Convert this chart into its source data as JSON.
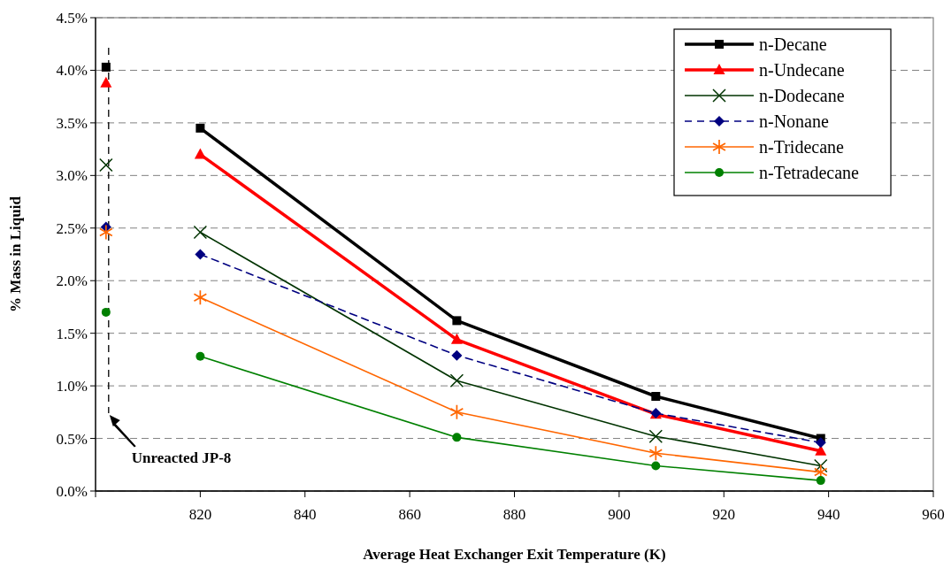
{
  "chart_data": {
    "type": "line",
    "xlabel": "Average Heat Exchanger Exit Temperature (K)",
    "ylabel": "% Mass in Liquid",
    "xlim": [
      800,
      960
    ],
    "xticks": [
      {
        "value": 800,
        "label": null
      },
      820,
      840,
      860,
      880,
      900,
      920,
      940,
      960
    ],
    "ylim": [
      0,
      4.5
    ],
    "yticks": [
      {
        "value": 0,
        "label": "0.0%"
      },
      {
        "value": 0.5,
        "label": "0.5%"
      },
      {
        "value": 1,
        "label": "1.0%"
      },
      {
        "value": 1.5,
        "label": "1.5%"
      },
      {
        "value": 2,
        "label": "2.0%"
      },
      {
        "value": 2.5,
        "label": "2.5%"
      },
      {
        "value": 3,
        "label": "3.0%"
      },
      {
        "value": 3.5,
        "label": "3.5%"
      },
      {
        "value": 4,
        "label": "4.0%"
      },
      {
        "value": 4.5,
        "label": "4.5%"
      }
    ],
    "x": [
      802,
      811,
      820,
      869,
      907,
      938.5
    ],
    "grid": "y",
    "legend": "top right",
    "series": [
      {
        "name": "n-Decane",
        "color": "#000000",
        "marker": "square",
        "values": [
          4.03,
          null,
          3.45,
          1.62,
          0.9,
          0.5
        ]
      },
      {
        "name": "n-Undecane",
        "color": "#ff0000",
        "marker": "triangle",
        "values": [
          3.88,
          null,
          3.2,
          1.44,
          0.73,
          0.38
        ]
      },
      {
        "name": "n-Dodecane",
        "color": "#003300",
        "marker": "cross",
        "values": [
          3.1,
          null,
          2.46,
          1.05,
          0.52,
          0.24
        ]
      },
      {
        "name": "n-Nonane",
        "color": "#000080",
        "marker": "diamond",
        "line_style": "dashed",
        "values": [
          2.51,
          null,
          2.25,
          1.29,
          0.74,
          0.46
        ]
      },
      {
        "name": "n-Tridecane",
        "color": "#ff6600",
        "marker": "star",
        "values": [
          2.46,
          null,
          1.84,
          0.75,
          0.36,
          0.18
        ]
      },
      {
        "name": "n-Tetradecane",
        "color": "#008000",
        "marker": "circle",
        "values": [
          1.7,
          null,
          1.28,
          0.51,
          0.24,
          0.1
        ]
      }
    ],
    "ref_lines": [
      {
        "axis": "x",
        "value": 802.5,
        "label": "Unreacted JP-8",
        "color": "#000000",
        "line_style": "dashed"
      }
    ]
  }
}
